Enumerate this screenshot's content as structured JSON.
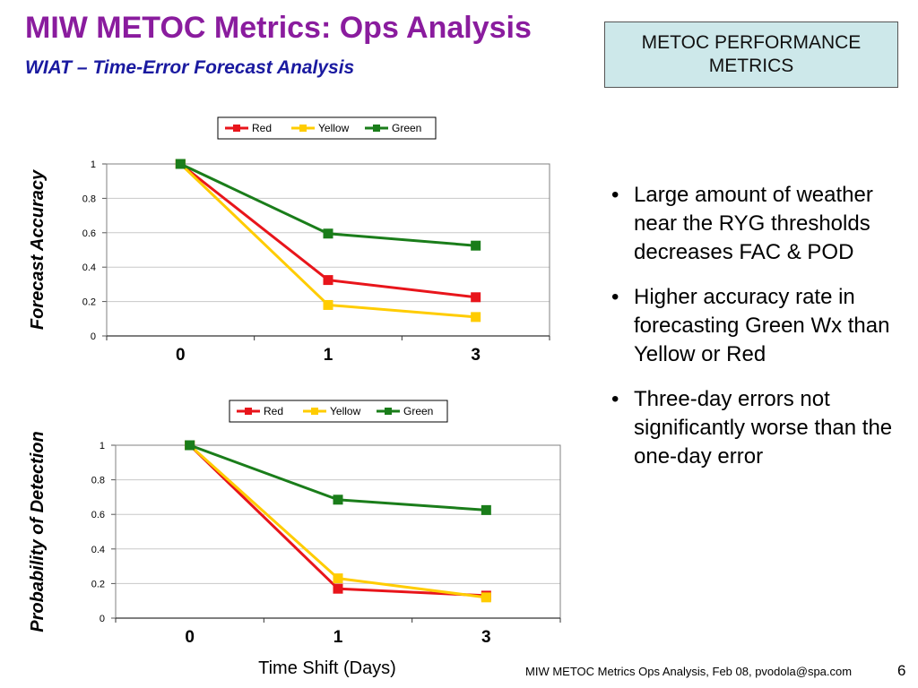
{
  "slide": {
    "title": "MIW METOC Metrics:  Ops Analysis",
    "subtitle": "WIAT – Time-Error Forecast Analysis",
    "badge": "METOC PERFORMANCE METRICS",
    "bullets": [
      "Large amount of weather near the RYG thresholds decreases FAC & POD",
      "Higher accuracy rate in forecasting Green Wx than Yellow or Red",
      "Three-day errors not significantly worse than the one-day error"
    ],
    "footer": "MIW METOC Metrics Ops Analysis, Feb 08, pvodola@spa.com",
    "page_number": "6"
  },
  "chart_data": [
    {
      "type": "line",
      "title": "",
      "xlabel": "",
      "ylabel": "Forecast Accuracy",
      "categories": [
        "0",
        "1",
        "3"
      ],
      "ylim": [
        0,
        1
      ],
      "yticks": [
        "0",
        "0.2",
        "0.4",
        "0.6",
        "0.8",
        "1"
      ],
      "grid": true,
      "legend": "top",
      "series": [
        {
          "name": "Red",
          "color": "#e8151b",
          "values": [
            1.0,
            0.325,
            0.225
          ]
        },
        {
          "name": "Yellow",
          "color": "#ffcc00",
          "values": [
            1.0,
            0.18,
            0.11
          ]
        },
        {
          "name": "Green",
          "color": "#1a7d1a",
          "values": [
            1.0,
            0.595,
            0.525
          ]
        }
      ]
    },
    {
      "type": "line",
      "title": "",
      "xlabel": "Time Shift (Days)",
      "ylabel": "Probability of Detection",
      "categories": [
        "0",
        "1",
        "3"
      ],
      "ylim": [
        0,
        1
      ],
      "yticks": [
        "0",
        "0.2",
        "0.4",
        "0.6",
        "0.8",
        "1"
      ],
      "grid": true,
      "legend": "top",
      "series": [
        {
          "name": "Red",
          "color": "#e8151b",
          "values": [
            1.0,
            0.17,
            0.13
          ]
        },
        {
          "name": "Yellow",
          "color": "#ffcc00",
          "values": [
            1.0,
            0.23,
            0.12
          ]
        },
        {
          "name": "Green",
          "color": "#1a7d1a",
          "values": [
            1.0,
            0.685,
            0.625
          ]
        }
      ]
    }
  ]
}
